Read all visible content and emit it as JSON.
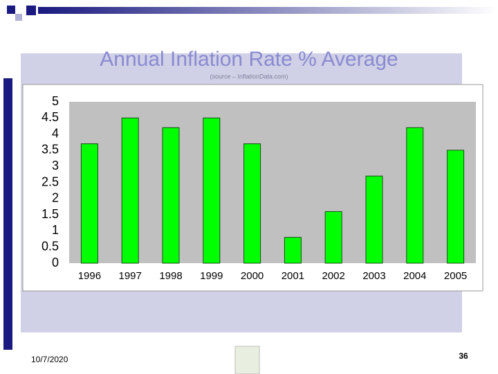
{
  "chart_data": {
    "type": "bar",
    "title": "Annual Inflation Rate % Average",
    "subtitle": "(source – InflationData.com)",
    "categories": [
      "1996",
      "1997",
      "1998",
      "1999",
      "2000",
      "2001",
      "2002",
      "2003",
      "2004",
      "2005"
    ],
    "values": [
      3.7,
      4.5,
      4.2,
      4.5,
      3.7,
      0.8,
      1.6,
      2.7,
      4.2,
      3.5
    ],
    "color": "#00ff00",
    "ylim": [
      0,
      5
    ],
    "yticks": [
      0,
      0.5,
      1,
      1.5,
      2,
      2.5,
      3,
      3.5,
      4,
      4.5,
      5
    ],
    "grid": false
  },
  "footer": {
    "date": "10/7/2020",
    "page_number": "36"
  }
}
